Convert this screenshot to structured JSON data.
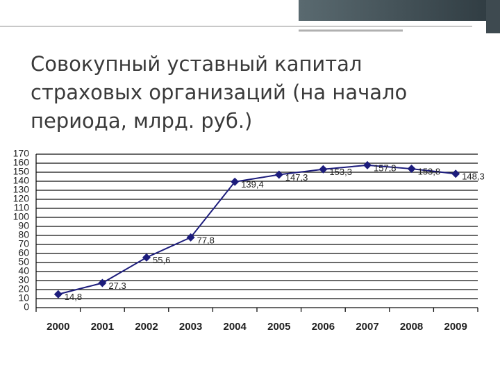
{
  "chart_data": {
    "type": "line",
    "title": [
      "Совокупный уставный капитал",
      "страховых организаций (на начало",
      "периода, млрд. руб.)"
    ],
    "categories": [
      "2000",
      "2001",
      "2002",
      "2003",
      "2004",
      "2005",
      "2006",
      "2007",
      "2008",
      "2009"
    ],
    "series": [
      {
        "color": "#1c1c7c",
        "values": [
          14.8,
          27.3,
          55.6,
          77.8,
          139.4,
          147.3,
          153.3,
          157.8,
          153.8,
          148.3
        ],
        "value_labels": [
          "14,8",
          "27,3",
          "55,6",
          "77,8",
          "139,4",
          "147,3",
          "153,3",
          "157,8",
          "153,8",
          "148,3"
        ]
      }
    ],
    "ylim": [
      0,
      170
    ],
    "yticks": [
      0,
      10,
      20,
      30,
      40,
      50,
      60,
      70,
      80,
      90,
      100,
      110,
      120,
      130,
      140,
      150,
      160,
      170
    ],
    "grid": true
  }
}
